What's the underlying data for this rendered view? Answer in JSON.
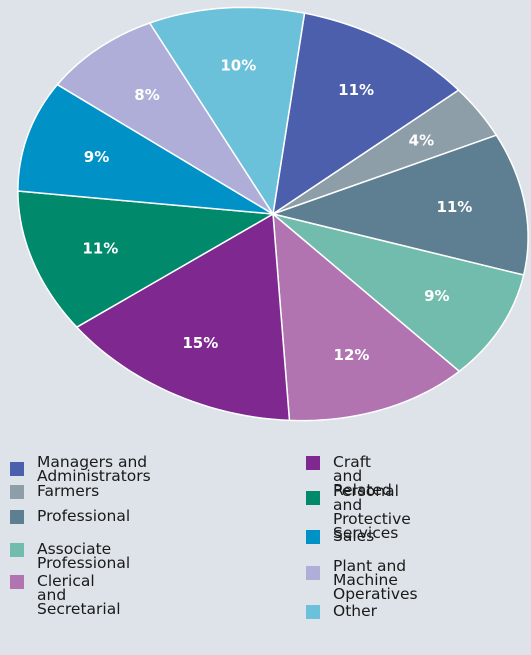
{
  "chart_data": {
    "type": "pie",
    "title": "",
    "slices": [
      {
        "label": "Managers and\nAdministrators",
        "value": 11,
        "display": "11%",
        "color": "#4b5fad"
      },
      {
        "label": "Farmers",
        "value": 4,
        "display": "4%",
        "color": "#8e9ea8"
      },
      {
        "label": "Professional",
        "value": 11,
        "display": "11%",
        "color": "#5e7f92"
      },
      {
        "label": "Associate Professional",
        "value": 9,
        "display": "9%",
        "color": "#71bcac"
      },
      {
        "label": "Clerical and Secretarial",
        "value": 12,
        "display": "12%",
        "color": "#b273b1"
      },
      {
        "label": "Craft and Related",
        "value": 15,
        "display": "15%",
        "color": "#7e2890"
      },
      {
        "label": "Personal and\nProtective Services",
        "value": 11,
        "display": "11%",
        "color": "#00896a"
      },
      {
        "label": "Sales",
        "value": 9,
        "display": "9%",
        "color": "#0092c7"
      },
      {
        "label": "Plant and Machine\nOperatives",
        "value": 8,
        "display": "8%",
        "color": "#aeaed8"
      },
      {
        "label": "Other",
        "value": 10,
        "display": "10%",
        "color": "#6bc0da"
      }
    ],
    "legend_placement": "bottom"
  }
}
